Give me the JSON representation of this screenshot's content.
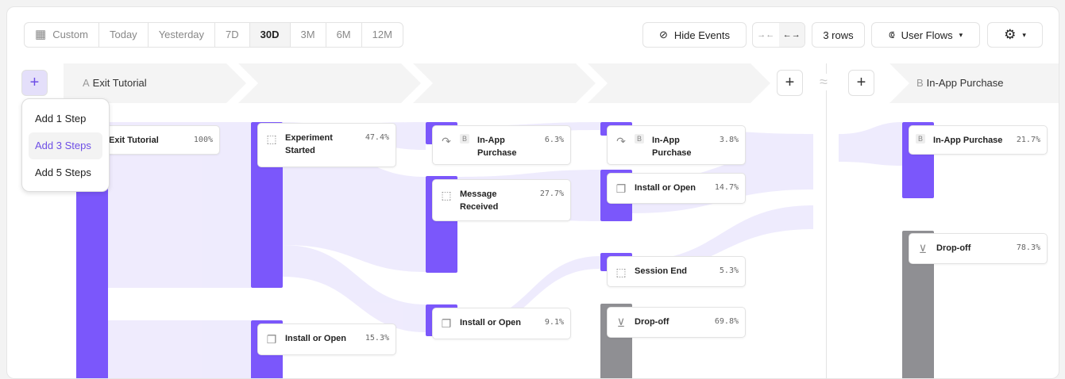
{
  "date_range": {
    "items": [
      "Custom",
      "Today",
      "Yesterday",
      "7D",
      "30D",
      "3M",
      "6M",
      "12M"
    ],
    "active": "30D"
  },
  "toolbar": {
    "hide_events": "Hide Events",
    "rows": "3 rows",
    "view": "User Flows"
  },
  "banners": {
    "a_letter": "A",
    "a_label": "Exit Tutorial",
    "b_letter": "B",
    "b_label": "In-App Purchase",
    "break_symbol": "≈"
  },
  "add_menu": [
    "Add 1 Step",
    "Add 3 Steps",
    "Add 5 Steps"
  ],
  "add_menu_highlighted": "Add 3 Steps",
  "nodes": [
    {
      "name": "Exit Tutorial",
      "pct": "100%"
    },
    {
      "name": "Experiment Started",
      "pct": "47.4%",
      "icon": "cursor-click-icon"
    },
    {
      "name": "Install or Open",
      "pct": "15.3%",
      "icon": "copy-icon"
    },
    {
      "badge": "B",
      "name": "In-App Purchase",
      "pct": "6.3%",
      "icon": "redirect-icon"
    },
    {
      "name": "Message Received",
      "pct": "27.7%",
      "icon": "cursor-click-icon"
    },
    {
      "name": "Install or Open",
      "pct": "9.1%",
      "icon": "copy-icon"
    },
    {
      "badge": "B",
      "name": "In-App Purchase",
      "pct": "3.8%",
      "icon": "redirect-icon"
    },
    {
      "name": "Install or Open",
      "pct": "14.7%",
      "icon": "copy-icon"
    },
    {
      "name": "Session End",
      "pct": "5.3%",
      "icon": "cursor-click-icon"
    },
    {
      "name": "Drop-off",
      "pct": "69.8%",
      "icon": "arrow-down-circle-icon"
    },
    {
      "badge": "B",
      "name": "In-App Purchase",
      "pct": "21.7%"
    },
    {
      "name": "Drop-off",
      "pct": "78.3%",
      "icon": "arrow-down-circle-icon"
    }
  ],
  "colors": {
    "accent": "#7b57fb",
    "dropoff": "#8f8f93",
    "flow": "#ece8fd"
  }
}
